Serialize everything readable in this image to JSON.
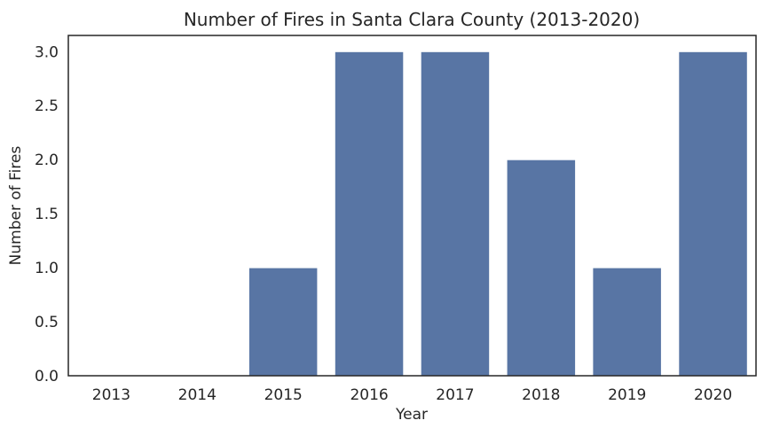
{
  "chart_data": {
    "type": "bar",
    "title": "Number of Fires in Santa Clara County (2013-2020)",
    "xlabel": "Year",
    "ylabel": "Number of Fires",
    "categories": [
      "2013",
      "2014",
      "2015",
      "2016",
      "2017",
      "2018",
      "2019",
      "2020"
    ],
    "values": [
      0,
      0,
      1,
      3,
      3,
      2,
      1,
      3
    ],
    "ylim": [
      0,
      3.15
    ],
    "yticks": [
      "0.0",
      "0.5",
      "1.0",
      "1.5",
      "2.0",
      "2.5",
      "3.0"
    ],
    "grid": false,
    "legend": "none",
    "bar_color": "#5875a4"
  }
}
